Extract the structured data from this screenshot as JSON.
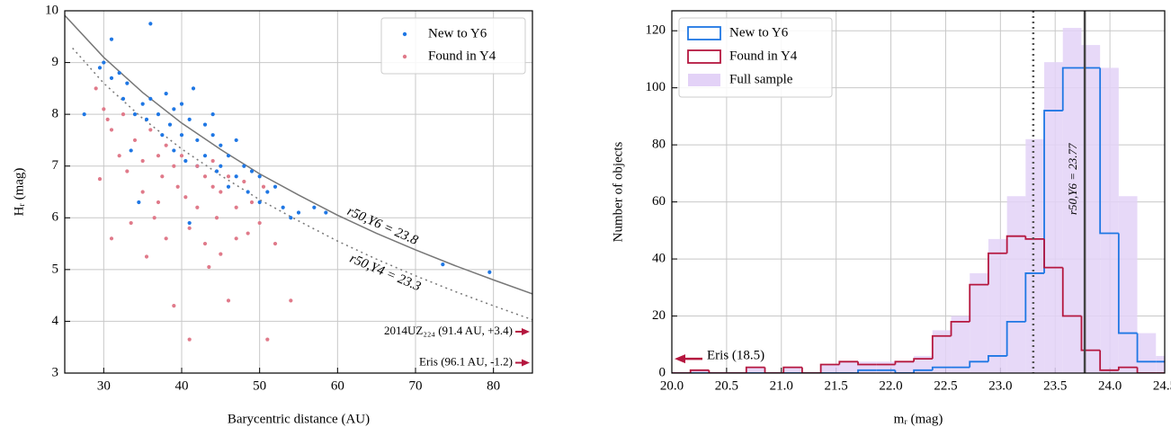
{
  "chart_data": [
    {
      "type": "scatter",
      "xlabel": "Barycentric distance (AU)",
      "ylabel": "Hᵣ (mag)",
      "xlim": [
        25,
        85
      ],
      "ylim": [
        3,
        10
      ],
      "xticks": [
        30,
        40,
        50,
        60,
        70,
        80
      ],
      "yticks": [
        3,
        4,
        5,
        6,
        7,
        8,
        9,
        10
      ],
      "grid": true,
      "legend": "upper right",
      "series": [
        {
          "name": "New to Y6",
          "color": "#1f77e4",
          "x": [
            27.5,
            30,
            31,
            31,
            32,
            32.5,
            33,
            34,
            35,
            35.5,
            36,
            36,
            37,
            37.5,
            38,
            38.5,
            39,
            39,
            40,
            40,
            40.5,
            41,
            41,
            41.5,
            42,
            42,
            43,
            43,
            44,
            44,
            44.5,
            45,
            45,
            46,
            46,
            47,
            47,
            48,
            48.5,
            49,
            50,
            50,
            51,
            52,
            53,
            54,
            55,
            57,
            58.5,
            73.5,
            79.5,
            34.5,
            29.5,
            33.5
          ],
          "y": [
            8.0,
            9.0,
            9.45,
            8.7,
            8.8,
            8.3,
            8.6,
            8.0,
            8.2,
            7.9,
            9.75,
            8.3,
            8.0,
            7.6,
            8.4,
            7.8,
            8.1,
            7.3,
            8.2,
            7.6,
            7.1,
            7.9,
            5.9,
            8.5,
            7.5,
            7.0,
            7.8,
            7.2,
            7.6,
            8.0,
            6.9,
            7.4,
            7.0,
            7.2,
            6.6,
            7.5,
            6.8,
            7.0,
            6.5,
            6.9,
            6.8,
            6.3,
            6.5,
            6.6,
            6.2,
            6.0,
            6.1,
            6.2,
            6.1,
            5.1,
            4.95,
            6.3,
            8.9,
            7.3
          ]
        },
        {
          "name": "Found in Y4",
          "color": "#e07a8a",
          "x": [
            29.5,
            29,
            30,
            31,
            31,
            32,
            32.5,
            33,
            34,
            35,
            35,
            35.5,
            36,
            36.5,
            37,
            37.5,
            38,
            38,
            39,
            39,
            39.5,
            40,
            40.5,
            41,
            41,
            42,
            42,
            43,
            43,
            43.5,
            44,
            44,
            45,
            45,
            46,
            46,
            47,
            47,
            48,
            48.5,
            49,
            50,
            50.5,
            51,
            52,
            54,
            44.5,
            37,
            33.5,
            30.5
          ],
          "y": [
            6.75,
            8.5,
            8.1,
            5.6,
            7.7,
            7.2,
            8.0,
            6.9,
            7.5,
            6.5,
            7.1,
            5.25,
            7.7,
            6.0,
            7.2,
            6.8,
            7.4,
            5.6,
            4.3,
            7.0,
            6.6,
            7.2,
            6.4,
            3.65,
            5.8,
            7.0,
            6.2,
            6.8,
            5.5,
            5.05,
            6.6,
            7.1,
            6.5,
            5.3,
            4.4,
            6.8,
            5.6,
            6.2,
            6.7,
            5.7,
            6.3,
            5.9,
            6.6,
            3.65,
            5.5,
            4.4,
            6.0,
            6.3,
            5.9,
            7.9
          ]
        }
      ],
      "curves": [
        {
          "label": "r50,Y6 = 23.8",
          "style": "solid",
          "color": "#777777",
          "x": [
            25,
            30,
            35,
            40,
            45,
            50,
            55,
            60,
            65,
            70,
            75,
            80,
            85
          ],
          "y": [
            9.91,
            9.1,
            8.42,
            7.83,
            7.32,
            6.85,
            6.44,
            6.05,
            5.7,
            5.38,
            5.08,
            4.8,
            4.53
          ]
        },
        {
          "label": "r50,Y4 = 23.3",
          "style": "dotted",
          "color": "#777777",
          "x": [
            26,
            30,
            35,
            40,
            45,
            50,
            55,
            60,
            65,
            70,
            75,
            80,
            85
          ],
          "y": [
            9.28,
            8.6,
            7.92,
            7.33,
            6.82,
            6.35,
            5.94,
            5.55,
            5.2,
            4.88,
            4.58,
            4.3,
            4.03
          ]
        }
      ],
      "annotations": [
        "2014UZ₂₂₄ (91.4 AU, +3.4)",
        "Eris (96.1 AU, -1.2)"
      ]
    },
    {
      "type": "histogram",
      "xlabel": "mᵣ (mag)",
      "ylabel": "Number of objects",
      "xlim": [
        20,
        24.5
      ],
      "ylim": [
        0,
        127
      ],
      "xticks": [
        {
          "value": 20,
          "label": "20.0"
        },
        20.5,
        {
          "value": 21,
          "label": "21.0"
        },
        21.5,
        {
          "value": 22,
          "label": "22.0"
        },
        22.5,
        {
          "value": 23,
          "label": "23.0"
        },
        23.5,
        {
          "value": 24,
          "label": "24.0"
        },
        24.5
      ],
      "yticks": [
        0,
        20,
        40,
        60,
        80,
        100,
        120
      ],
      "grid": true,
      "legend": "upper left",
      "bins": [
        20.0,
        20.17,
        20.34,
        20.51,
        20.68,
        20.85,
        21.02,
        21.19,
        21.36,
        21.53,
        21.7,
        21.87,
        22.04,
        22.21,
        22.38,
        22.55,
        22.72,
        22.89,
        23.06,
        23.23,
        23.4,
        23.57,
        23.74,
        23.91,
        24.08,
        24.25,
        24.42,
        24.59
      ],
      "series": [
        {
          "name": "New to Y6",
          "color": "#1f77e4",
          "style": "step",
          "values": [
            0,
            0,
            0,
            0,
            0,
            0,
            0,
            0,
            0,
            0,
            1,
            1,
            0,
            1,
            2,
            2,
            4,
            6,
            18,
            35,
            92,
            107,
            107,
            49,
            14,
            4,
            4
          ]
        },
        {
          "name": "Found in Y4",
          "color": "#b5173f",
          "style": "step",
          "values": [
            0,
            1,
            0,
            0,
            2,
            0,
            2,
            0,
            3,
            4,
            3,
            3,
            4,
            5,
            13,
            18,
            31,
            42,
            48,
            47,
            37,
            20,
            8,
            1,
            2,
            0,
            0
          ]
        },
        {
          "name": "Full sample",
          "color": "#e3d2f7",
          "style": "filled",
          "values": [
            0,
            1,
            0,
            0,
            2,
            0,
            2,
            0,
            3,
            4,
            4,
            4,
            4,
            6,
            15,
            20,
            35,
            47,
            62,
            82,
            109,
            121,
            115,
            107,
            62,
            14,
            6
          ]
        }
      ],
      "vlines": [
        {
          "value": 23.3,
          "style": "dotted",
          "color": "#555555"
        },
        {
          "value": 23.77,
          "style": "solid",
          "color": "#444444",
          "label": "r50,Y6 = 23.77"
        }
      ],
      "annotations": [
        "Eris (18.5)"
      ]
    }
  ]
}
